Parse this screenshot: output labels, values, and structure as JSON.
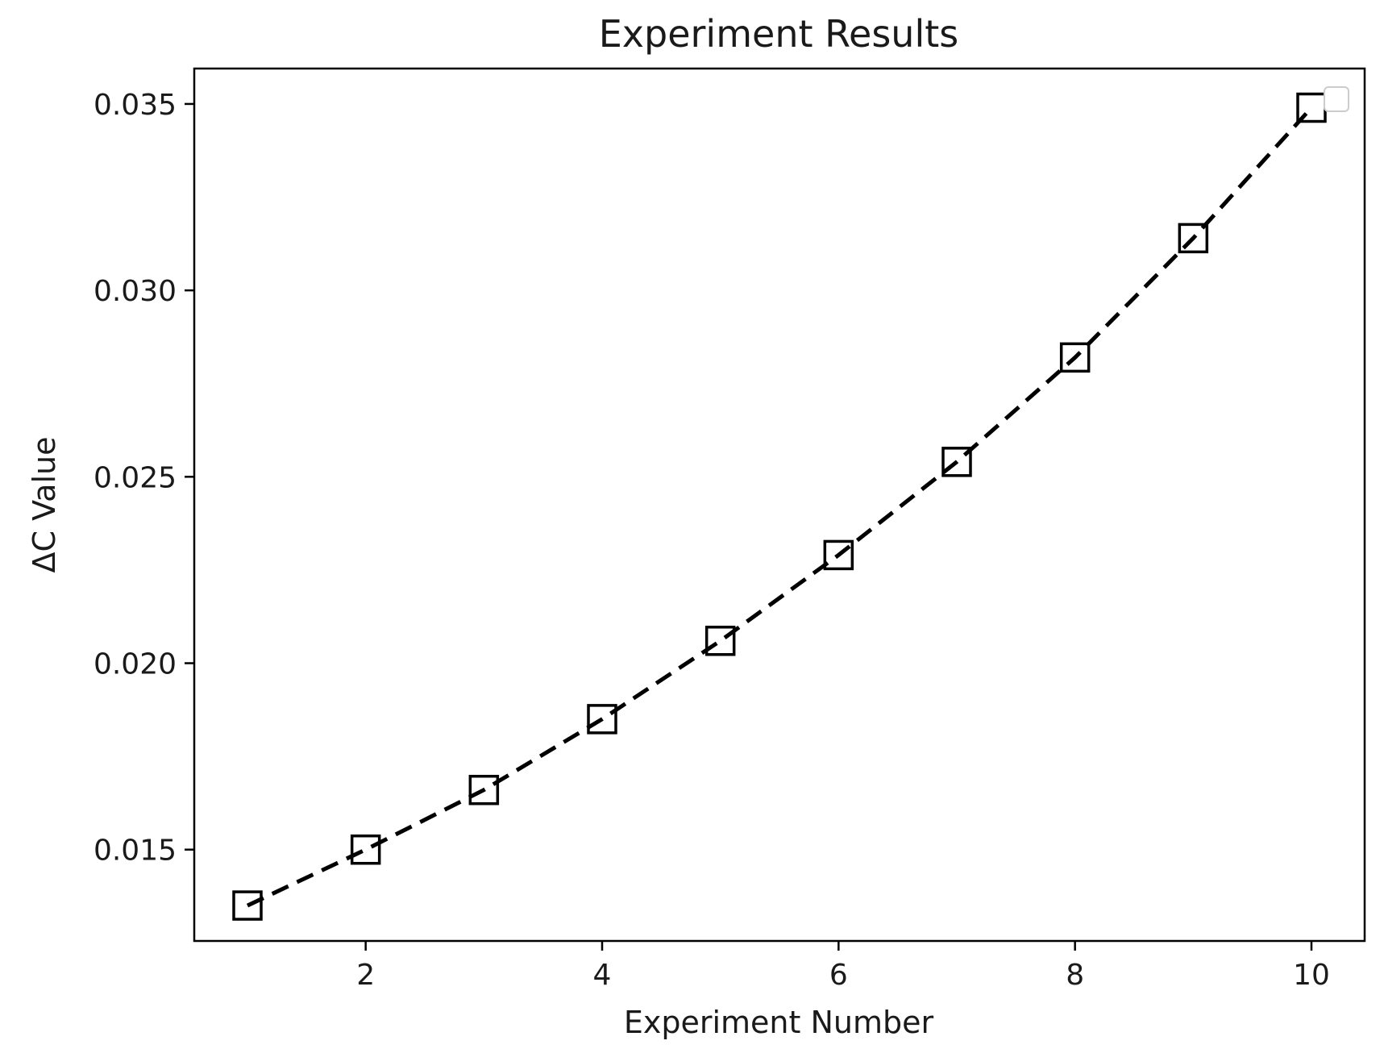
{
  "chart_data": {
    "type": "line",
    "title": "Experiment Results",
    "xlabel": "Experiment Number",
    "ylabel": "ΔC Value",
    "xlim": [
      0.55,
      10.45
    ],
    "ylim": [
      0.01255,
      0.03595
    ],
    "xticks": [
      2,
      4,
      6,
      8,
      10
    ],
    "yticks": [
      0.015,
      0.02,
      0.025,
      0.03,
      0.035
    ],
    "ytick_labels": [
      "0.015",
      "0.020",
      "0.025",
      "0.030",
      "0.035"
    ],
    "grid": false,
    "legend": "top-right (empty)",
    "series": [
      {
        "line_style": "dashed",
        "marker": "square",
        "color": "#000000",
        "x": [
          1,
          2,
          3,
          4,
          5,
          6,
          7,
          8,
          9,
          10
        ],
        "y": [
          0.0135,
          0.015,
          0.0166,
          0.0185,
          0.0206,
          0.0229,
          0.0254,
          0.0282,
          0.0314,
          0.0349
        ]
      }
    ]
  }
}
